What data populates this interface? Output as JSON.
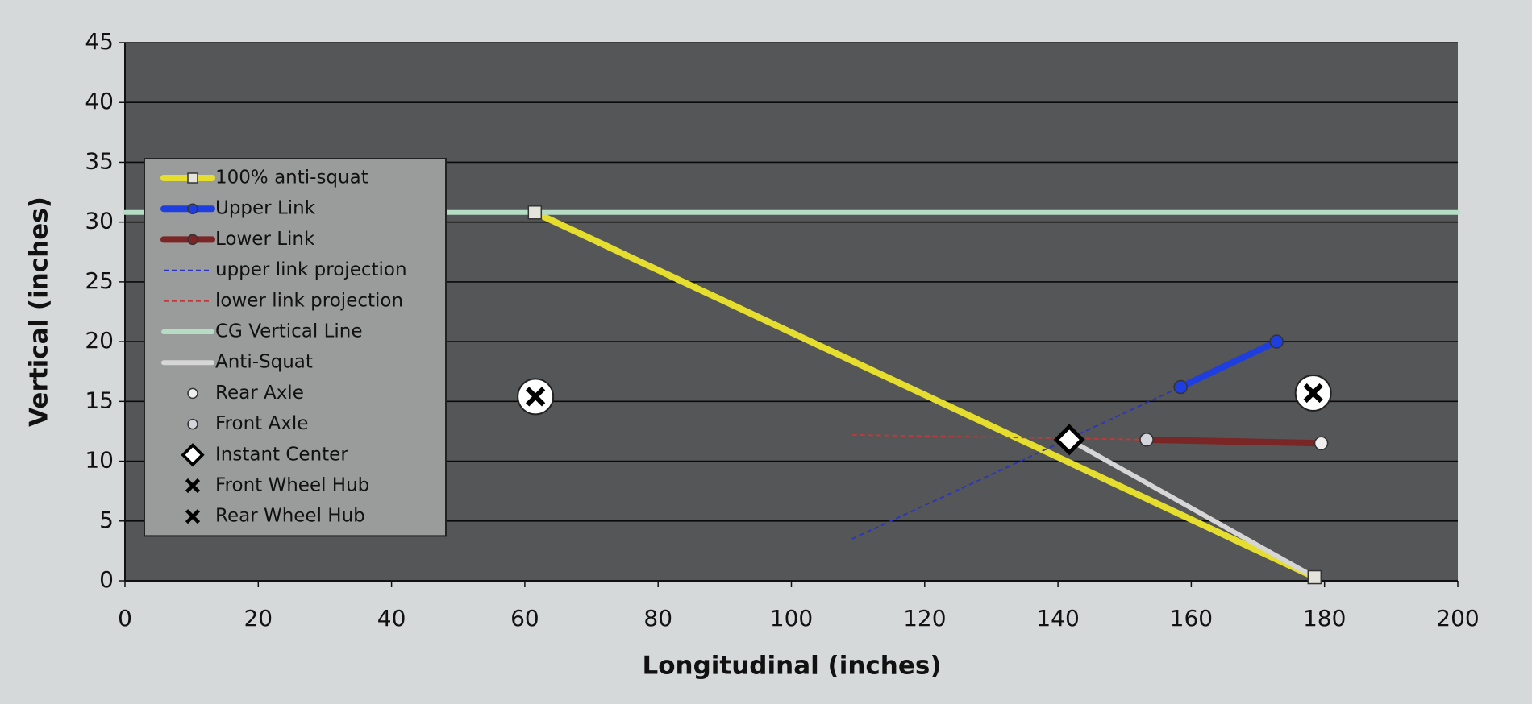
{
  "chart_data": {
    "type": "scatter",
    "x_label": "Longitudinal (inches)",
    "y_label": "Vertical (inches)",
    "xlim": [
      0,
      200
    ],
    "xticks": [
      0,
      20,
      40,
      60,
      80,
      100,
      120,
      140,
      160,
      180,
      200
    ],
    "ylim": [
      0,
      45
    ],
    "yticks": [
      0,
      5,
      10,
      15,
      20,
      25,
      30,
      35,
      40,
      45
    ],
    "grid": "y",
    "legend": "left",
    "series": [
      {
        "name": "100% anti-squat",
        "color": "#e6de2e",
        "line": "thick",
        "marker": "square",
        "x": [
          61.5,
          178.5
        ],
        "y": [
          30.8,
          0.3
        ]
      },
      {
        "name": "Upper Link",
        "color": "#1e3ee0",
        "line": "thick",
        "marker": "circle",
        "x": [
          158.4,
          172.8
        ],
        "y": [
          16.2,
          20.0
        ]
      },
      {
        "name": "Lower Link",
        "color": "#7a2626",
        "line": "thick",
        "marker": "circle",
        "x": [
          153.3,
          179.5
        ],
        "y": [
          11.8,
          11.5
        ]
      },
      {
        "name": "upper link projection",
        "color": "#2a34c0",
        "line": "dashed",
        "marker": "none",
        "x": [
          109.1,
          158.4
        ],
        "y": [
          3.5,
          16.2
        ]
      },
      {
        "name": "lower link projection",
        "color": "#c03a3a",
        "line": "dashed",
        "marker": "none",
        "x": [
          109.1,
          153.3
        ],
        "y": [
          12.2,
          11.8
        ]
      },
      {
        "name": "CG Vertical Line",
        "color": "#b6dcc6",
        "line": "thick",
        "marker": "none",
        "x": [
          0,
          200
        ],
        "y": [
          30.8,
          30.8
        ]
      },
      {
        "name": "Anti-Squat",
        "color": "#d6d6d6",
        "line": "thick",
        "marker": "none",
        "x": [
          141.7,
          178.5
        ],
        "y": [
          11.8,
          0.3
        ]
      },
      {
        "name": "Rear Axle",
        "color": "#eeeeee",
        "line": "none",
        "marker": "circle",
        "x": [
          179.5
        ],
        "y": [
          11.5
        ]
      },
      {
        "name": "Front Axle",
        "color": "#d4d4dc",
        "line": "none",
        "marker": "circle",
        "x": [
          153.3
        ],
        "y": [
          11.8
        ]
      },
      {
        "name": "Instant Center",
        "color": "#ffffff",
        "line": "none",
        "marker": "diamond",
        "x": [
          141.7
        ],
        "y": [
          11.8
        ]
      },
      {
        "name": "Front Wheel Hub",
        "color": "#ffffff",
        "line": "none",
        "marker": "x",
        "x": [
          61.6
        ],
        "y": [
          15.4
        ]
      },
      {
        "name": "Rear Wheel Hub",
        "color": "#ffffff",
        "line": "none",
        "marker": "x",
        "x": [
          178.3
        ],
        "y": [
          15.7
        ]
      }
    ]
  }
}
